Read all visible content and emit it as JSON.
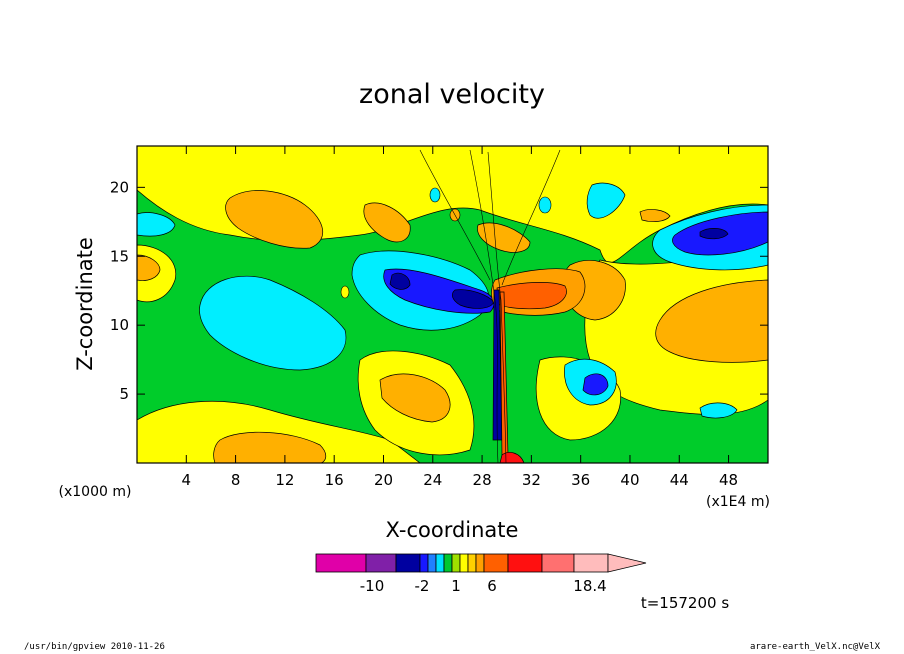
{
  "chart_data": {
    "type": "heatmap",
    "title": "zonal velocity",
    "xlabel": "X-coordinate",
    "ylabel": "Z-coordinate",
    "x_unit_note": "(x1E4 m)",
    "y_unit_note": "(x1000 m)",
    "x_ticks": [
      "4",
      "8",
      "12",
      "16",
      "20",
      "24",
      "28",
      "32",
      "36",
      "40",
      "44",
      "48"
    ],
    "y_ticks": [
      "5",
      "10",
      "15",
      "20"
    ],
    "xlim": [
      0,
      51.2
    ],
    "ylim": [
      0,
      23
    ],
    "time_label": "t=157200 s",
    "colorbar": {
      "tick_labels": [
        "-10",
        "-2",
        "1",
        "6",
        "18.4"
      ],
      "colors": [
        "#e000a8",
        "#8020a8",
        "#0000a0",
        "#1818ff",
        "#2080ff",
        "#00e0ff",
        "#00c830",
        "#a0e000",
        "#ffff00",
        "#ffd000",
        "#ffa000",
        "#ff6000",
        "#ff1010",
        "#ff7070",
        "#ffbcbc"
      ]
    },
    "regions": [
      {
        "value": 18.4,
        "level": "max",
        "x": 29.5,
        "y": 0.5
      },
      {
        "value": 5,
        "level": "orange",
        "x": 31.5,
        "y": 11.5
      },
      {
        "value": -5,
        "level": "navy",
        "x": 28,
        "y": 11.8
      },
      {
        "value": -5,
        "level": "navy",
        "x": 46,
        "y": 16.5
      },
      {
        "value": -3,
        "level": "blue",
        "x": 37,
        "y": 5
      },
      {
        "value": -1,
        "level": "cyan",
        "x": 13,
        "y": 10
      }
    ]
  },
  "footer": {
    "left": "/usr/bin/gpview   2010-11-26",
    "right": "arare-earth_VelX.nc@VelX"
  }
}
